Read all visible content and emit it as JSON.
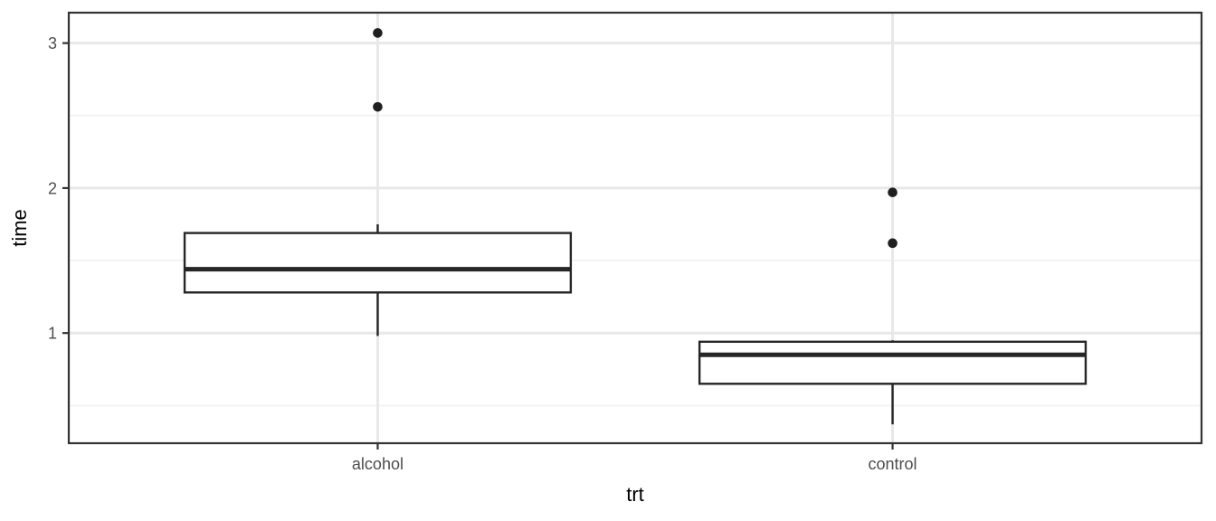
{
  "chart_data": {
    "type": "boxplot",
    "title": "",
    "xlabel": "trt",
    "ylabel": "time",
    "categories": [
      "alcohol",
      "control"
    ],
    "series": [
      {
        "category": "alcohol",
        "x_position": 1,
        "whisker_low": 0.98,
        "q1": 1.28,
        "median": 1.44,
        "q3": 1.69,
        "whisker_high": 1.75,
        "outliers": [
          2.56,
          3.07
        ]
      },
      {
        "category": "control",
        "x_position": 2,
        "whisker_low": 0.37,
        "q1": 0.65,
        "median": 0.85,
        "q3": 0.94,
        "whisker_high": 0.95,
        "outliers": [
          1.62,
          1.97
        ]
      }
    ],
    "y_axis": {
      "ticks": [
        3,
        2,
        1
      ],
      "minor_ticks": [
        2.5,
        1.5,
        0.5
      ],
      "range": [
        0.24,
        3.21
      ]
    },
    "x_axis": {
      "domain": [
        0.4,
        2.6
      ],
      "box_width_units": 0.75
    },
    "grid": true,
    "legend": "none",
    "colors": {
      "background": "#ffffff",
      "panel_background": "#ffffff",
      "panel_border": "#333333",
      "grid_major": "#e8e8e8",
      "grid_minor": "#f3f3f3",
      "box_stroke": "#262626",
      "box_fill": "#ffffff",
      "outlier": "#1f1f1f",
      "tick_mark": "#333333",
      "tick_label": "#4d4d4d",
      "axis_title": "#000000"
    }
  }
}
